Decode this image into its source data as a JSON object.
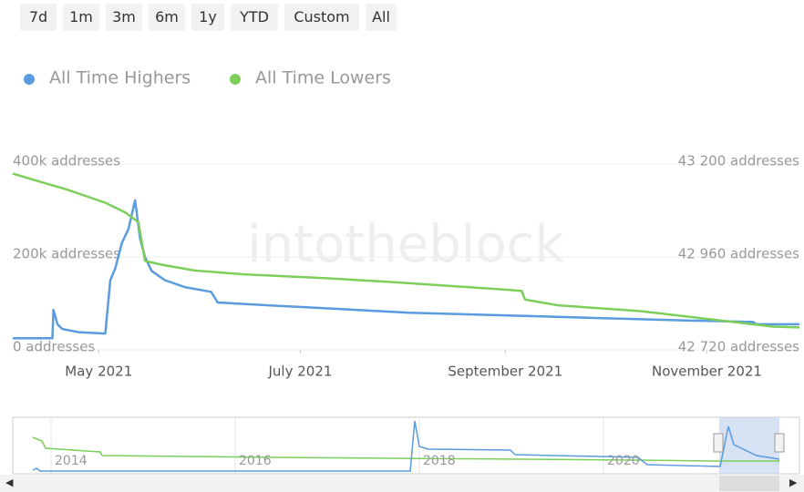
{
  "range_buttons": [
    "7d",
    "1m",
    "3m",
    "6m",
    "1y",
    "YTD",
    "Custom",
    "All"
  ],
  "watermark": "intotheblock",
  "navigator_years": [
    "2014",
    "2016",
    "2018",
    "2020"
  ],
  "chart_data": {
    "type": "line",
    "xlim": [
      0,
      238
    ],
    "xticks": [
      {
        "value": 26,
        "label": "May 2021"
      },
      {
        "value": 87,
        "label": "July 2021"
      },
      {
        "value": 149,
        "label": "September 2021"
      },
      {
        "value": 210,
        "label": "November 2021"
      }
    ],
    "ylim": [
      0,
      400000
    ],
    "yticks": [
      {
        "value": 0,
        "label": "0 addresses"
      },
      {
        "value": 200000,
        "label": "200k addresses"
      },
      {
        "value": 400000,
        "label": "400k addresses"
      }
    ],
    "y2lim": [
      42720,
      43200
    ],
    "y2ticks": [
      {
        "value": 42720,
        "label": "42 720 addresses"
      },
      {
        "value": 42960,
        "label": "42 960 addresses"
      },
      {
        "value": 43200,
        "label": "43 200 addresses"
      }
    ],
    "grid": true,
    "series": [
      {
        "name": "All Time Highers",
        "color": "#5b9be0",
        "x": [
          0,
          12,
          12.3,
          13.5,
          15,
          20,
          28,
          29.5,
          31,
          33,
          35,
          37,
          38.5,
          40,
          42,
          46,
          52,
          60,
          62,
          80,
          120,
          160,
          200,
          224,
          225,
          238
        ],
        "values": [
          25000,
          25000,
          86000,
          55000,
          45000,
          38000,
          35000,
          150000,
          175000,
          230000,
          260000,
          322000,
          240000,
          200000,
          170000,
          150000,
          135000,
          125000,
          102000,
          95000,
          80000,
          72000,
          64000,
          60000,
          55000,
          55000
        ]
      },
      {
        "name": "All Time Lowers",
        "color": "#7ccf5b",
        "axis": "y2",
        "x": [
          0,
          10,
          16,
          28,
          34,
          38,
          40,
          45,
          55,
          70,
          95,
          115,
          150,
          154,
          155,
          165,
          190,
          230,
          238
        ],
        "values": [
          43175,
          43150,
          43135,
          43100,
          43075,
          43050,
          42950,
          42940,
          42925,
          42915,
          42905,
          42895,
          42875,
          42872,
          42850,
          42835,
          42820,
          42780,
          42778
        ]
      }
    ]
  }
}
